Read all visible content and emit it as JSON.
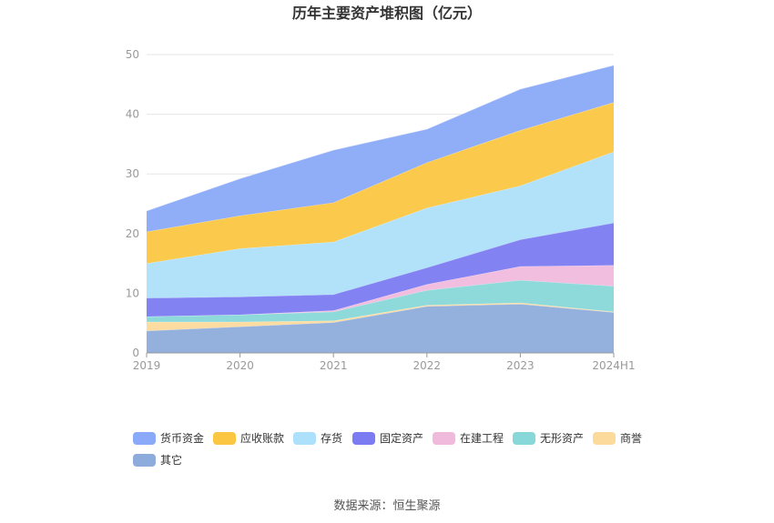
{
  "chart_data": {
    "type": "area",
    "stacked": true,
    "title": "历年主要资产堆积图（亿元）",
    "categories": [
      "2019",
      "2020",
      "2021",
      "2022",
      "2023",
      "2024H1"
    ],
    "ylim": [
      0,
      50
    ],
    "yticks": [
      0,
      10,
      20,
      30,
      40,
      50
    ],
    "grid": true,
    "series": [
      {
        "name": "其它",
        "color": "#8EACDB",
        "values": [
          3.7,
          4.4,
          5.1,
          7.8,
          8.2,
          6.8
        ]
      },
      {
        "name": "商誉",
        "color": "#FCDA9C",
        "values": [
          1.5,
          0.8,
          0.3,
          0.2,
          0.2,
          0.1
        ]
      },
      {
        "name": "无形资产",
        "color": "#88D8D9",
        "values": [
          0.9,
          1.2,
          1.5,
          2.5,
          3.8,
          4.3
        ]
      },
      {
        "name": "在建工程",
        "color": "#F0BADD",
        "values": [
          0.0,
          0.0,
          0.2,
          1.0,
          2.3,
          3.5
        ]
      },
      {
        "name": "固定资产",
        "color": "#7B7BF2",
        "values": [
          3.1,
          3.0,
          2.7,
          2.8,
          4.5,
          7.1
        ]
      },
      {
        "name": "存货",
        "color": "#ADE0FA",
        "values": [
          5.8,
          8.1,
          8.8,
          10.0,
          9.0,
          11.9
        ]
      },
      {
        "name": "应收账款",
        "color": "#FBC743",
        "values": [
          5.3,
          5.5,
          6.6,
          7.6,
          9.3,
          8.3
        ]
      },
      {
        "name": "货币资金",
        "color": "#8AA9F8",
        "values": [
          3.5,
          6.2,
          8.8,
          5.6,
          6.9,
          6.2
        ]
      }
    ],
    "legend_order": [
      "货币资金",
      "应收账款",
      "存货",
      "固定资产",
      "在建工程",
      "无形资产",
      "商誉",
      "其它"
    ],
    "legend_position": "bottom"
  },
  "source": "数据来源：恒生聚源"
}
